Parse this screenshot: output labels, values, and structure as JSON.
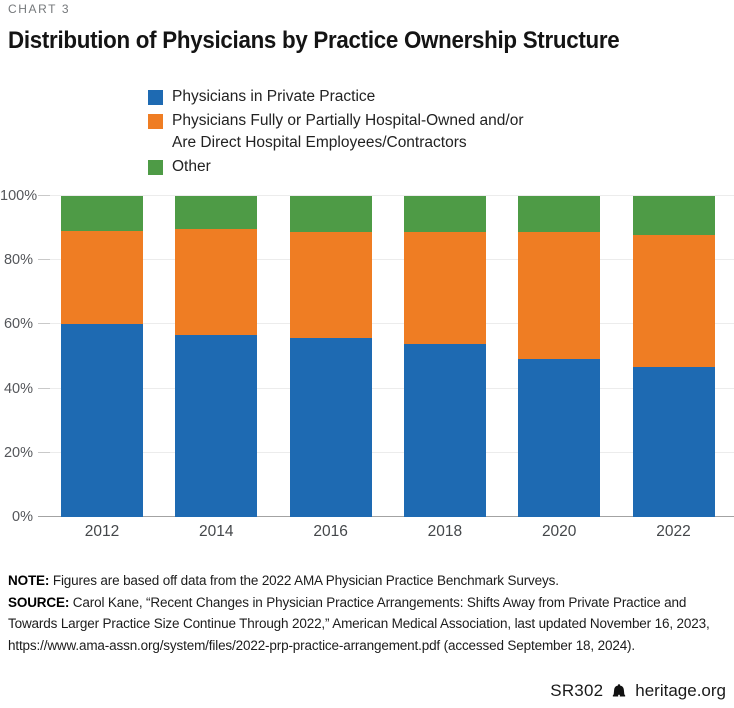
{
  "kicker": "CHART 3",
  "title": "Distribution of Physicians by Practice Ownership Structure",
  "legend": [
    {
      "label": "Physicians in Private Practice",
      "color": "#1e6ab2"
    },
    {
      "label": "Physicians Fully or Partially Hospital-Owned and/or\nAre Direct Hospital Employees/Contractors",
      "color": "#ef7d23"
    },
    {
      "label": "Other",
      "color": "#4e9b46"
    }
  ],
  "chart_data": {
    "type": "bar",
    "stacked": true,
    "categories": [
      "2012",
      "2014",
      "2016",
      "2018",
      "2020",
      "2022"
    ],
    "series": [
      {
        "name": "Physicians in Private Practice",
        "color": "#1e6ab2",
        "values": [
          60.1,
          56.8,
          55.8,
          54.0,
          49.1,
          46.7
        ]
      },
      {
        "name": "Physicians Fully or Partially Hospital-Owned and/or Are Direct Hospital Employees/Contractors",
        "color": "#ef7d23",
        "values": [
          29.0,
          33.0,
          33.0,
          34.7,
          39.8,
          41.0
        ]
      },
      {
        "name": "Other",
        "color": "#4e9b46",
        "values": [
          10.9,
          10.2,
          11.2,
          11.3,
          11.1,
          12.3
        ]
      }
    ],
    "ylim": [
      0,
      100
    ],
    "ytick_labels": [
      "0%",
      "20%",
      "40%",
      "60%",
      "80%",
      "100%"
    ],
    "ytick_values": [
      0,
      20,
      40,
      60,
      80,
      100
    ],
    "grid": true,
    "legend_position": "top-left",
    "xlabel": "",
    "ylabel": ""
  },
  "note": {
    "label": "NOTE:",
    "text": " Figures are based off data from the 2022 AMA Physician Practice Benchmark Surveys."
  },
  "source": {
    "label": "SOURCE:",
    "text": " Carol Kane, “Recent Changes in Physician Practice Arrangements: Shifts Away from Private Practice and Towards Larger Practice Size Continue Through 2022,” American Medical Association, last updated November 16, 2023, https://www.ama-assn.org/system/files/2022-prp-practice-arrangement.pdf (accessed September 18, 2024)."
  },
  "footer": {
    "report_id": "SR302",
    "site": "heritage.org",
    "logo": "liberty-bell-icon"
  }
}
